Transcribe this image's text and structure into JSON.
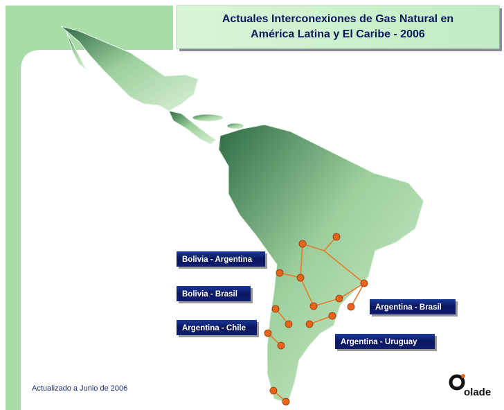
{
  "title": [
    "Actuales Interconexiones de Gas Natural en",
    "América Latina y El Caribe - 2006"
  ],
  "connections": [
    "Bolivia - Argentina",
    "Bolivia - Brasil",
    "Argentina - Chile",
    "Argentina - Brasil",
    "Argentina - Uruguay"
  ],
  "footer": "Actualizado a Junio de 2006",
  "logo": "olade"
}
